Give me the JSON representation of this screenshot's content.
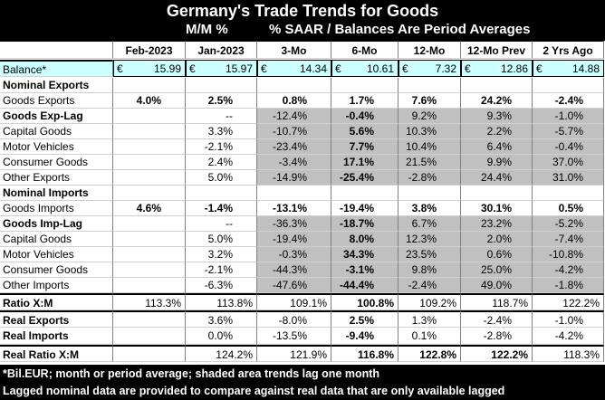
{
  "title": "Germany's Trade Trends for Goods",
  "subtitle_left": "M/M %",
  "subtitle_right": "% SAAR / Balances Are Period Averages",
  "columns": [
    "Feb-2023",
    "Jan-2023",
    "3-Mo",
    "6-Mo",
    "12-Mo",
    "12-Mo Prev",
    "2 Yrs Ago"
  ],
  "balance": {
    "label": "Balance*",
    "currency": "€",
    "values": [
      "15.99",
      "15.97",
      "14.34",
      "10.61",
      "7.32",
      "12.86",
      "14.88"
    ]
  },
  "rows": [
    {
      "label": "Nominal Exports"
    },
    {
      "label": "Goods Exports",
      "cells": [
        "4.0%",
        "2.5%",
        "0.8%",
        "1.7%",
        "7.6%",
        "24.2%",
        "-2.4%"
      ]
    },
    {
      "label": "Goods Exp-Lag",
      "cells": [
        null,
        "--",
        "-12.4%",
        "-0.4%",
        "9.2%",
        "9.3%",
        "-1.0%"
      ]
    },
    {
      "label": "Capital Goods",
      "cells": [
        null,
        "3.3%",
        "-10.7%",
        "5.6%",
        "10.3%",
        "2.2%",
        "-5.7%"
      ]
    },
    {
      "label": "Motor Vehicles",
      "cells": [
        null,
        "-2.1%",
        "-23.4%",
        "7.7%",
        "10.4%",
        "6.4%",
        "-0.4%"
      ]
    },
    {
      "label": "Consumer Goods",
      "cells": [
        null,
        "2.4%",
        "-3.4%",
        "17.1%",
        "21.5%",
        "9.9%",
        "37.0%"
      ]
    },
    {
      "label": "Other Exports",
      "cells": [
        null,
        "5.0%",
        "-14.9%",
        "-25.4%",
        "-2.8%",
        "24.4%",
        "31.0%"
      ]
    },
    {
      "label": "Nominal Imports"
    },
    {
      "label": "Goods Imports",
      "cells": [
        "4.6%",
        "-1.4%",
        "-13.1%",
        "-19.4%",
        "3.8%",
        "30.1%",
        "0.5%"
      ]
    },
    {
      "label": "Goods Imp-Lag",
      "cells": [
        null,
        "--",
        "-36.3%",
        "-18.7%",
        "6.7%",
        "23.2%",
        "-5.2%"
      ]
    },
    {
      "label": "Capital Goods",
      "cells": [
        null,
        "5.0%",
        "-19.4%",
        "8.0%",
        "12.3%",
        "2.0%",
        "-7.4%"
      ]
    },
    {
      "label": "Motor Vehicles",
      "cells": [
        null,
        "3.2%",
        "-0.3%",
        "34.3%",
        "23.5%",
        "0.6%",
        "-10.8%"
      ]
    },
    {
      "label": "Consumer Goods",
      "cells": [
        null,
        "-2.1%",
        "-44.3%",
        "-3.1%",
        "9.8%",
        "25.0%",
        "-4.2%"
      ]
    },
    {
      "label": "Other Imports",
      "cells": [
        null,
        "-6.3%",
        "-47.6%",
        "-44.4%",
        "-2.4%",
        "49.0%",
        "-1.8%"
      ]
    },
    {
      "label": "Ratio X:M",
      "cells": [
        "113.3%",
        "113.8%",
        "109.1%",
        "100.8%",
        "109.2%",
        "118.7%",
        "122.2%"
      ]
    },
    {
      "label": "Real Exports",
      "cells": [
        null,
        "3.6%",
        "-8.0%",
        "2.5%",
        "1.3%",
        "-2.4%",
        "-1.0%"
      ]
    },
    {
      "label": "Real Imports",
      "cells": [
        null,
        "0.0%",
        "-13.5%",
        "-9.4%",
        "0.1%",
        "-2.8%",
        "-4.2%"
      ]
    },
    {
      "label": "Real Ratio X:M",
      "cells": [
        null,
        "124.2%",
        "121.9%",
        "116.8%",
        "122.8%",
        "122.2%",
        "118.3%"
      ]
    }
  ],
  "footnotes": [
    "*Bil.EUR; month or period average; shaded area trends lag one month",
    "Lagged nominal data are provided to compare against real data that are only available lagged"
  ]
}
